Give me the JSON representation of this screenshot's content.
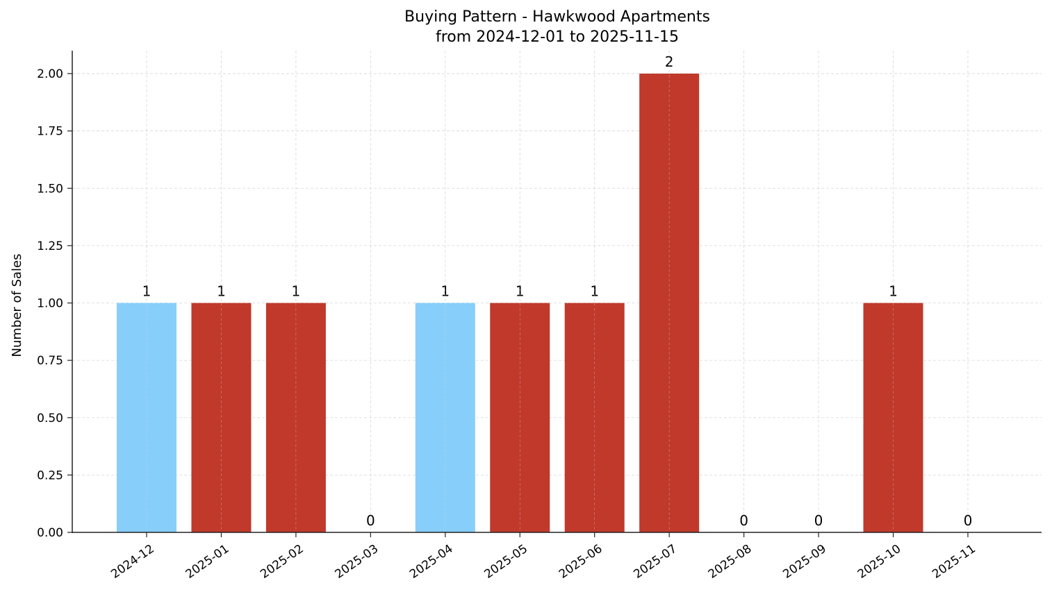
{
  "chart_data": {
    "type": "bar",
    "title": "Buying Pattern - Hawkwood Apartments",
    "subtitle": "from 2024-12-01 to 2025-11-15",
    "xlabel": "",
    "ylabel": "Number of Sales",
    "categories": [
      "2024-12",
      "2025-01",
      "2025-02",
      "2025-03",
      "2025-04",
      "2025-05",
      "2025-06",
      "2025-07",
      "2025-08",
      "2025-09",
      "2025-10",
      "2025-11"
    ],
    "values": [
      1,
      1,
      1,
      0,
      1,
      1,
      1,
      2,
      0,
      0,
      1,
      0
    ],
    "bar_colors": [
      "#87CEFA",
      "#C0392B",
      "#C0392B",
      "#C0392B",
      "#87CEFA",
      "#C0392B",
      "#C0392B",
      "#C0392B",
      "#C0392B",
      "#C0392B",
      "#C0392B",
      "#C0392B"
    ],
    "data_labels": [
      "1",
      "1",
      "1",
      "0",
      "1",
      "1",
      "1",
      "2",
      "0",
      "0",
      "1",
      "0"
    ],
    "yticks": [
      "0.00",
      "0.25",
      "0.50",
      "0.75",
      "1.00",
      "1.25",
      "1.50",
      "1.75",
      "2.00"
    ],
    "ylim": [
      0,
      2.1
    ],
    "grid": true,
    "legend": null
  }
}
